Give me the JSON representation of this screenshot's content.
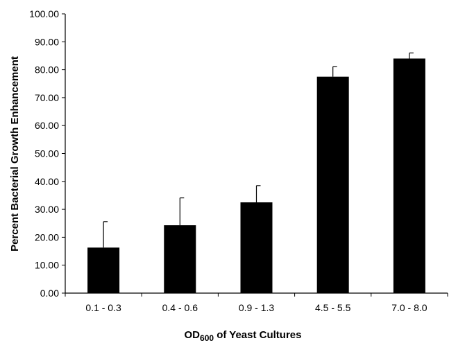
{
  "chart_data": {
    "type": "bar",
    "categories": [
      "0.1 - 0.3",
      "0.4 - 0.6",
      "0.9 - 1.3",
      "4.5 - 5.5",
      "7.0 - 8.0"
    ],
    "values": [
      16.3,
      24.3,
      32.5,
      77.5,
      84.0
    ],
    "error_plus": [
      9.3,
      9.8,
      6.0,
      3.6,
      2.0
    ],
    "ylim": [
      0,
      100
    ],
    "y_ticks": [
      "0.00",
      "10.00",
      "20.00",
      "30.00",
      "40.00",
      "50.00",
      "60.00",
      "70.00",
      "80.00",
      "90.00",
      "100.00"
    ],
    "ylabel": "Percent Bacterial Growth Enhancement",
    "xlabel": {
      "prefix": "OD",
      "subscript": "600",
      "suffix": " of Yeast Cultures"
    },
    "bar_color": "#000000",
    "grid": false,
    "legend": "none"
  }
}
